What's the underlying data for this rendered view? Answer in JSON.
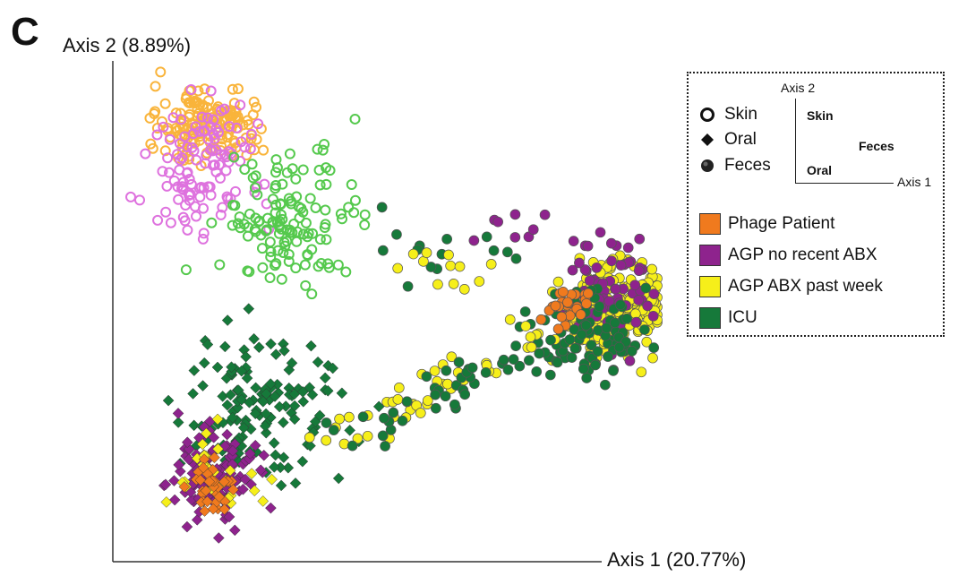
{
  "panel_label": "C",
  "colors": {
    "phage": "#f07a1e",
    "agp_no": "#8e238d",
    "agp_abx": "#f6ef1a",
    "icu": "#16793a",
    "skin_orange": "#f9b43b",
    "skin_pink": "#de72de",
    "skin_green": "#55c94d"
  },
  "chart_data": {
    "type": "scatter",
    "title": "",
    "xlabel": "Axis 1 (20.77%)",
    "ylabel": "Axis 2 (8.89%)",
    "xlim": [
      0,
      100
    ],
    "ylim": [
      0,
      100
    ],
    "grid": false,
    "legend": {
      "placement": "top-right",
      "shapes": [
        {
          "label": "Skin",
          "shape": "open-circle"
        },
        {
          "label": "Oral",
          "shape": "diamond"
        },
        {
          "label": "Feces",
          "shape": "filled-circle"
        }
      ],
      "inset": {
        "x_axis": "Axis 1",
        "y_axis": "Axis 2",
        "labels": [
          "Skin",
          "Feces",
          "Oral"
        ]
      },
      "groups": [
        {
          "label": "Phage Patient",
          "color": "#f07a1e"
        },
        {
          "label": "AGP no recent ABX",
          "color": "#8e238d"
        },
        {
          "label": "AGP ABX past week",
          "color": "#f6ef1a"
        },
        {
          "label": "ICU",
          "color": "#16793a"
        }
      ]
    },
    "clusters": [
      {
        "name": "Skin (AGP ABX past week)",
        "shape": "open-circle",
        "color": "#f9b43b",
        "center": [
          15,
          87
        ],
        "spread": [
          9,
          7
        ],
        "count": 150
      },
      {
        "name": "Skin (AGP no recent ABX)",
        "shape": "open-circle",
        "color": "#de72de",
        "center": [
          15,
          79
        ],
        "spread": [
          10,
          12
        ],
        "count": 110
      },
      {
        "name": "Skin (ICU)",
        "shape": "open-circle",
        "color": "#55c94d",
        "center": [
          30,
          68
        ],
        "spread": [
          12,
          12
        ],
        "count": 130
      },
      {
        "name": "Oral (ICU)",
        "shape": "diamond",
        "color": "#16793a",
        "center": [
          26,
          30
        ],
        "spread": [
          13,
          13
        ],
        "count": 140
      },
      {
        "name": "Oral (AGP no recent ABX)",
        "shape": "diamond",
        "color": "#8e238d",
        "center": [
          16,
          15
        ],
        "spread": [
          8,
          9
        ],
        "count": 120
      },
      {
        "name": "Oral (AGP ABX past week)",
        "shape": "diamond",
        "color": "#f6ef1a",
        "center": [
          17,
          15
        ],
        "spread": [
          7,
          7
        ],
        "count": 25
      },
      {
        "name": "Oral (Phage Patient)",
        "shape": "diamond",
        "color": "#f07a1e",
        "center": [
          16,
          13
        ],
        "spread": [
          5,
          5
        ],
        "count": 35
      },
      {
        "name": "Feces (AGP ABX past week)",
        "shape": "filled-circle",
        "color": "#f6ef1a",
        "center": [
          91,
          49
        ],
        "spread": [
          8,
          9
        ],
        "count": 260
      },
      {
        "name": "Feces (AGP no recent ABX)",
        "shape": "filled-circle",
        "color": "#8e238d",
        "center": [
          90,
          53
        ],
        "spread": [
          8,
          9
        ],
        "count": 70
      },
      {
        "name": "Feces (ICU)",
        "shape": "filled-circle",
        "color": "#16793a",
        "center": [
          86,
          44
        ],
        "spread": [
          10,
          10
        ],
        "count": 90
      },
      {
        "name": "Feces (Phage Patient)",
        "shape": "filled-circle",
        "color": "#f07a1e",
        "center": [
          82,
          50
        ],
        "spread": [
          3.5,
          3.5
        ],
        "count": 28
      },
      {
        "name": "Feces transition (AGP ABX past week)",
        "shape": "filled-circle",
        "color": "#f6ef1a",
        "from": [
          39,
          22
        ],
        "to": [
          78,
          45
        ],
        "jitter": 4,
        "count": 45
      },
      {
        "name": "Feces transition (ICU)",
        "shape": "filled-circle",
        "color": "#16793a",
        "from": [
          41,
          22
        ],
        "to": [
          76,
          42
        ],
        "jitter": 4,
        "count": 40
      },
      {
        "name": "Feces scattered (ICU)",
        "shape": "filled-circle",
        "color": "#16793a",
        "center": [
          62,
          62
        ],
        "spread": [
          10,
          8
        ],
        "count": 14
      },
      {
        "name": "Feces scattered (AGP no recent ABX)",
        "shape": "filled-circle",
        "color": "#8e238d",
        "center": [
          72,
          65
        ],
        "spread": [
          6,
          4
        ],
        "count": 8
      },
      {
        "name": "Feces scattered (AGP ABX past week)",
        "shape": "filled-circle",
        "color": "#f6ef1a",
        "center": [
          60,
          58
        ],
        "spread": [
          9,
          6
        ],
        "count": 12
      }
    ]
  }
}
